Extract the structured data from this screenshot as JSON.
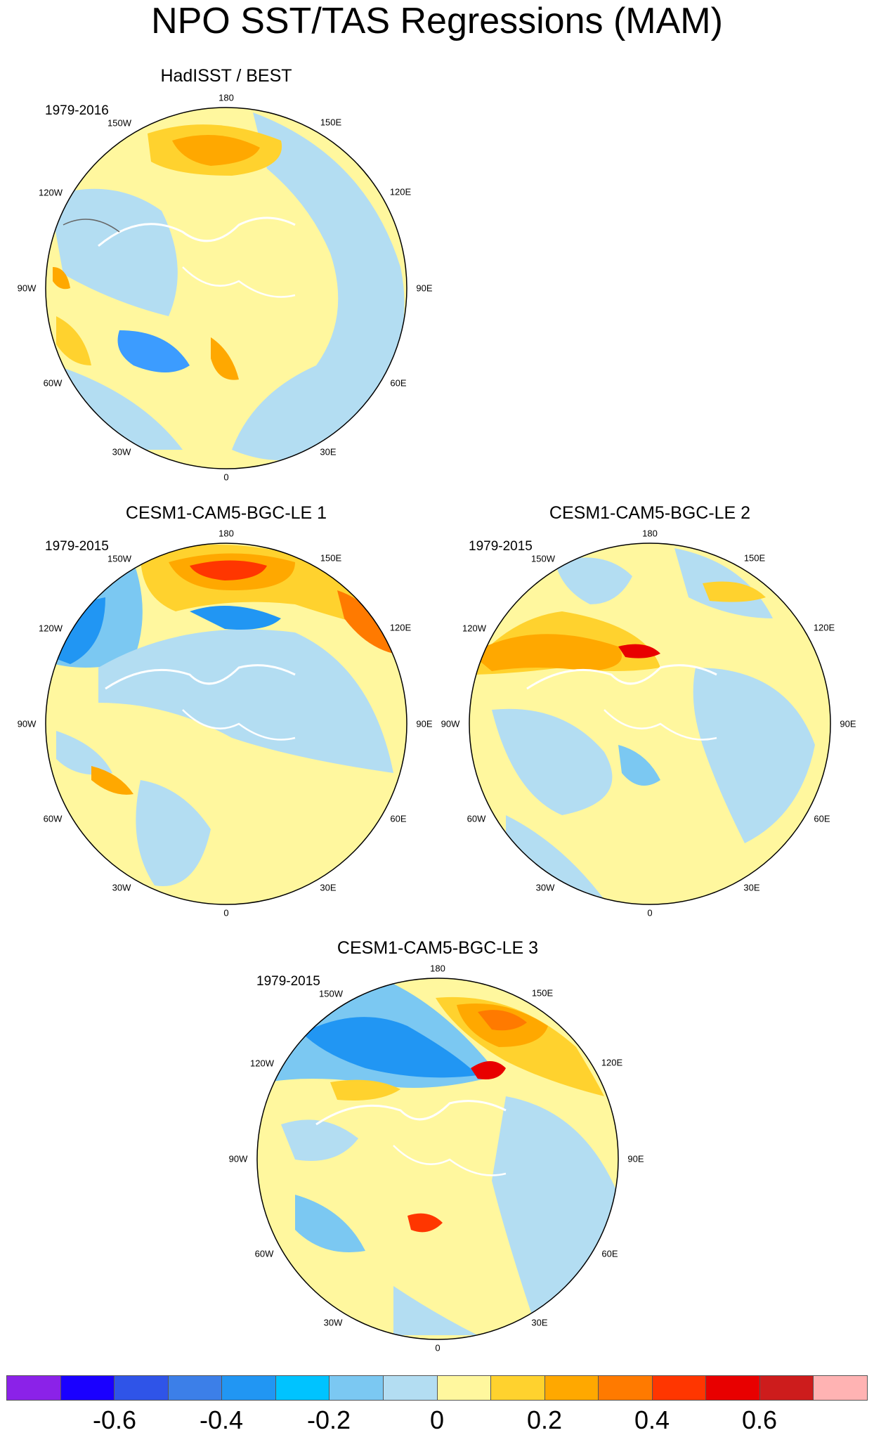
{
  "title": "NPO SST/TAS Regressions (MAM)",
  "panels": [
    {
      "title": "HadISST / BEST",
      "period": "1979-2016"
    },
    {
      "title": "CESM1-CAM5-BGC-LE 1",
      "period": "1979-2015"
    },
    {
      "title": "CESM1-CAM5-BGC-LE 2",
      "period": "1979-2015"
    },
    {
      "title": "CESM1-CAM5-BGC-LE 3",
      "period": "1979-2015"
    }
  ],
  "longitude_labels": [
    "180",
    "150E",
    "120E",
    "90E",
    "60E",
    "30E",
    "0",
    "30W",
    "60W",
    "90W",
    "120W",
    "150W"
  ],
  "colorbar": {
    "colors": [
      "#8b22e8",
      "#1a00ff",
      "#2f54e8",
      "#3c7fe8",
      "#2196f3",
      "#00c3ff",
      "#7bc8f2",
      "#b3ddf2",
      "#fff79e",
      "#ffd22e",
      "#ffa800",
      "#ff7a00",
      "#ff3600",
      "#e80000",
      "#cd1c1c",
      "#ffb3b3"
    ],
    "tick_labels": [
      "-0.6",
      "-0.4",
      "-0.2",
      "0",
      "0.2",
      "0.4",
      "0.6"
    ]
  },
  "map_colors": {
    "background": "#fff79e",
    "weak_negative": "#b3ddf2",
    "moderate_negative": "#7bc8f2",
    "strong_negative": "#3c9cff",
    "weak_positive": "#ffd22e",
    "moderate_positive": "#ffa800",
    "strong_positive": "#ff6a00",
    "peak_positive": "#e80000",
    "coast": "#ffffff",
    "lake": "#555555"
  }
}
